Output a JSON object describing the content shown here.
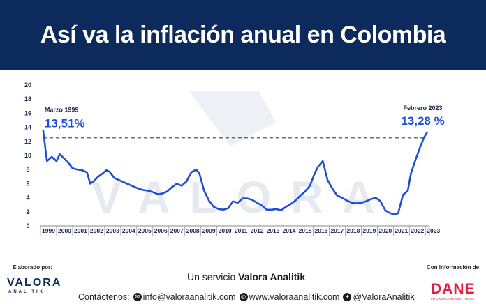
{
  "header": {
    "title": "Así va la inflación anual en Colombia"
  },
  "colors": {
    "banner": "#0c2a5b",
    "line": "#1f4fd1",
    "reference_line": "#555555",
    "dane_red": "#e31d3b"
  },
  "chart_data": {
    "type": "line",
    "title": "Así va la inflación anual en Colombia",
    "xlabel": "",
    "ylabel": "",
    "xlim": [
      1999,
      2023.25
    ],
    "ylim": [
      0,
      20
    ],
    "y_ticks": [
      "0",
      "2",
      "4",
      "6",
      "8",
      "10",
      "12",
      "14",
      "16",
      "18",
      "20"
    ],
    "x_ticks": [
      "1999",
      "2000",
      "2001",
      "2002",
      "2003",
      "2004",
      "2005",
      "2006",
      "2007",
      "2008",
      "2009",
      "2010",
      "2011",
      "2012",
      "2013",
      "2014",
      "2015",
      "2016",
      "2017",
      "2018",
      "2019",
      "2020",
      "2021",
      "2022",
      "2023"
    ],
    "grid": false,
    "series": [
      {
        "x": [
          1999.17,
          1999.4,
          1999.7,
          2000.0,
          2000.2,
          2000.5,
          2000.8,
          2001.0,
          2001.3,
          2001.6,
          2001.9,
          2002.1,
          2002.3,
          2002.6,
          2002.9,
          2003.1,
          2003.3,
          2003.6,
          2003.9,
          2004.2,
          2004.5,
          2004.8,
          2005.1,
          2005.4,
          2005.7,
          2006.0,
          2006.3,
          2006.6,
          2006.9,
          2007.2,
          2007.5,
          2007.8,
          2008.1,
          2008.4,
          2008.7,
          2008.9,
          2009.2,
          2009.5,
          2009.8,
          2010.1,
          2010.4,
          2010.7,
          2011.0,
          2011.3,
          2011.6,
          2011.9,
          2012.2,
          2012.5,
          2012.8,
          2013.1,
          2013.4,
          2013.7,
          2014.0,
          2014.3,
          2014.6,
          2014.9,
          2015.2,
          2015.5,
          2015.8,
          2016.1,
          2016.3,
          2016.6,
          2016.9,
          2017.2,
          2017.5,
          2017.8,
          2018.1,
          2018.4,
          2018.7,
          2019.0,
          2019.3,
          2019.6,
          2019.9,
          2020.2,
          2020.5,
          2020.8,
          2021.1,
          2021.3,
          2021.6,
          2021.9,
          2022.1,
          2022.4,
          2022.7,
          2022.9,
          2023.1
        ],
        "y": [
          13.51,
          9.2,
          9.8,
          9.2,
          10.2,
          9.5,
          8.8,
          8.2,
          8.0,
          7.9,
          7.6,
          6.0,
          6.3,
          7.0,
          7.5,
          7.9,
          7.7,
          6.8,
          6.5,
          6.2,
          5.9,
          5.6,
          5.3,
          5.1,
          5.0,
          4.8,
          4.5,
          4.6,
          4.9,
          5.5,
          6.0,
          5.7,
          6.3,
          7.6,
          8.0,
          7.5,
          5.0,
          3.6,
          2.7,
          2.4,
          2.3,
          2.5,
          3.5,
          3.3,
          3.9,
          3.9,
          3.7,
          3.3,
          2.9,
          2.3,
          2.3,
          2.4,
          2.2,
          2.7,
          3.1,
          3.6,
          4.3,
          4.9,
          5.7,
          7.5,
          8.4,
          9.2,
          6.5,
          5.3,
          4.3,
          4.0,
          3.6,
          3.3,
          3.2,
          3.3,
          3.5,
          3.8,
          4.0,
          3.5,
          2.2,
          1.8,
          1.6,
          1.8,
          4.4,
          5.0,
          7.5,
          9.5,
          11.4,
          12.5,
          13.28
        ]
      }
    ],
    "reference_line": {
      "y": 12.5
    },
    "annotations": [
      {
        "label": "Marzo 1999",
        "value": "13,51%",
        "x": 1999.17,
        "y": 13.51
      },
      {
        "label": "Febrero 2023",
        "value": "13,28 %",
        "x": 2023.1,
        "y": 13.28
      }
    ]
  },
  "watermark": {
    "brand": "VALORA",
    "sub": "ANALITIK"
  },
  "footer": {
    "elaborado": "Elaborado por:",
    "con_info": "Con información de:",
    "servicio_prefix": "Un servicio ",
    "servicio_brand": "Valora Analitik",
    "contact_label": "Contáctenos:",
    "email": "info@valoraanalitik.com",
    "web": "www.valoraanalitik.com",
    "twitter": "@ValoraAnalitik",
    "logo_word": "VALORA",
    "logo_sub": "ANALITIK",
    "dane_word": "DANE",
    "dane_sub": "INFORMACIÓN PARA TODOS"
  }
}
